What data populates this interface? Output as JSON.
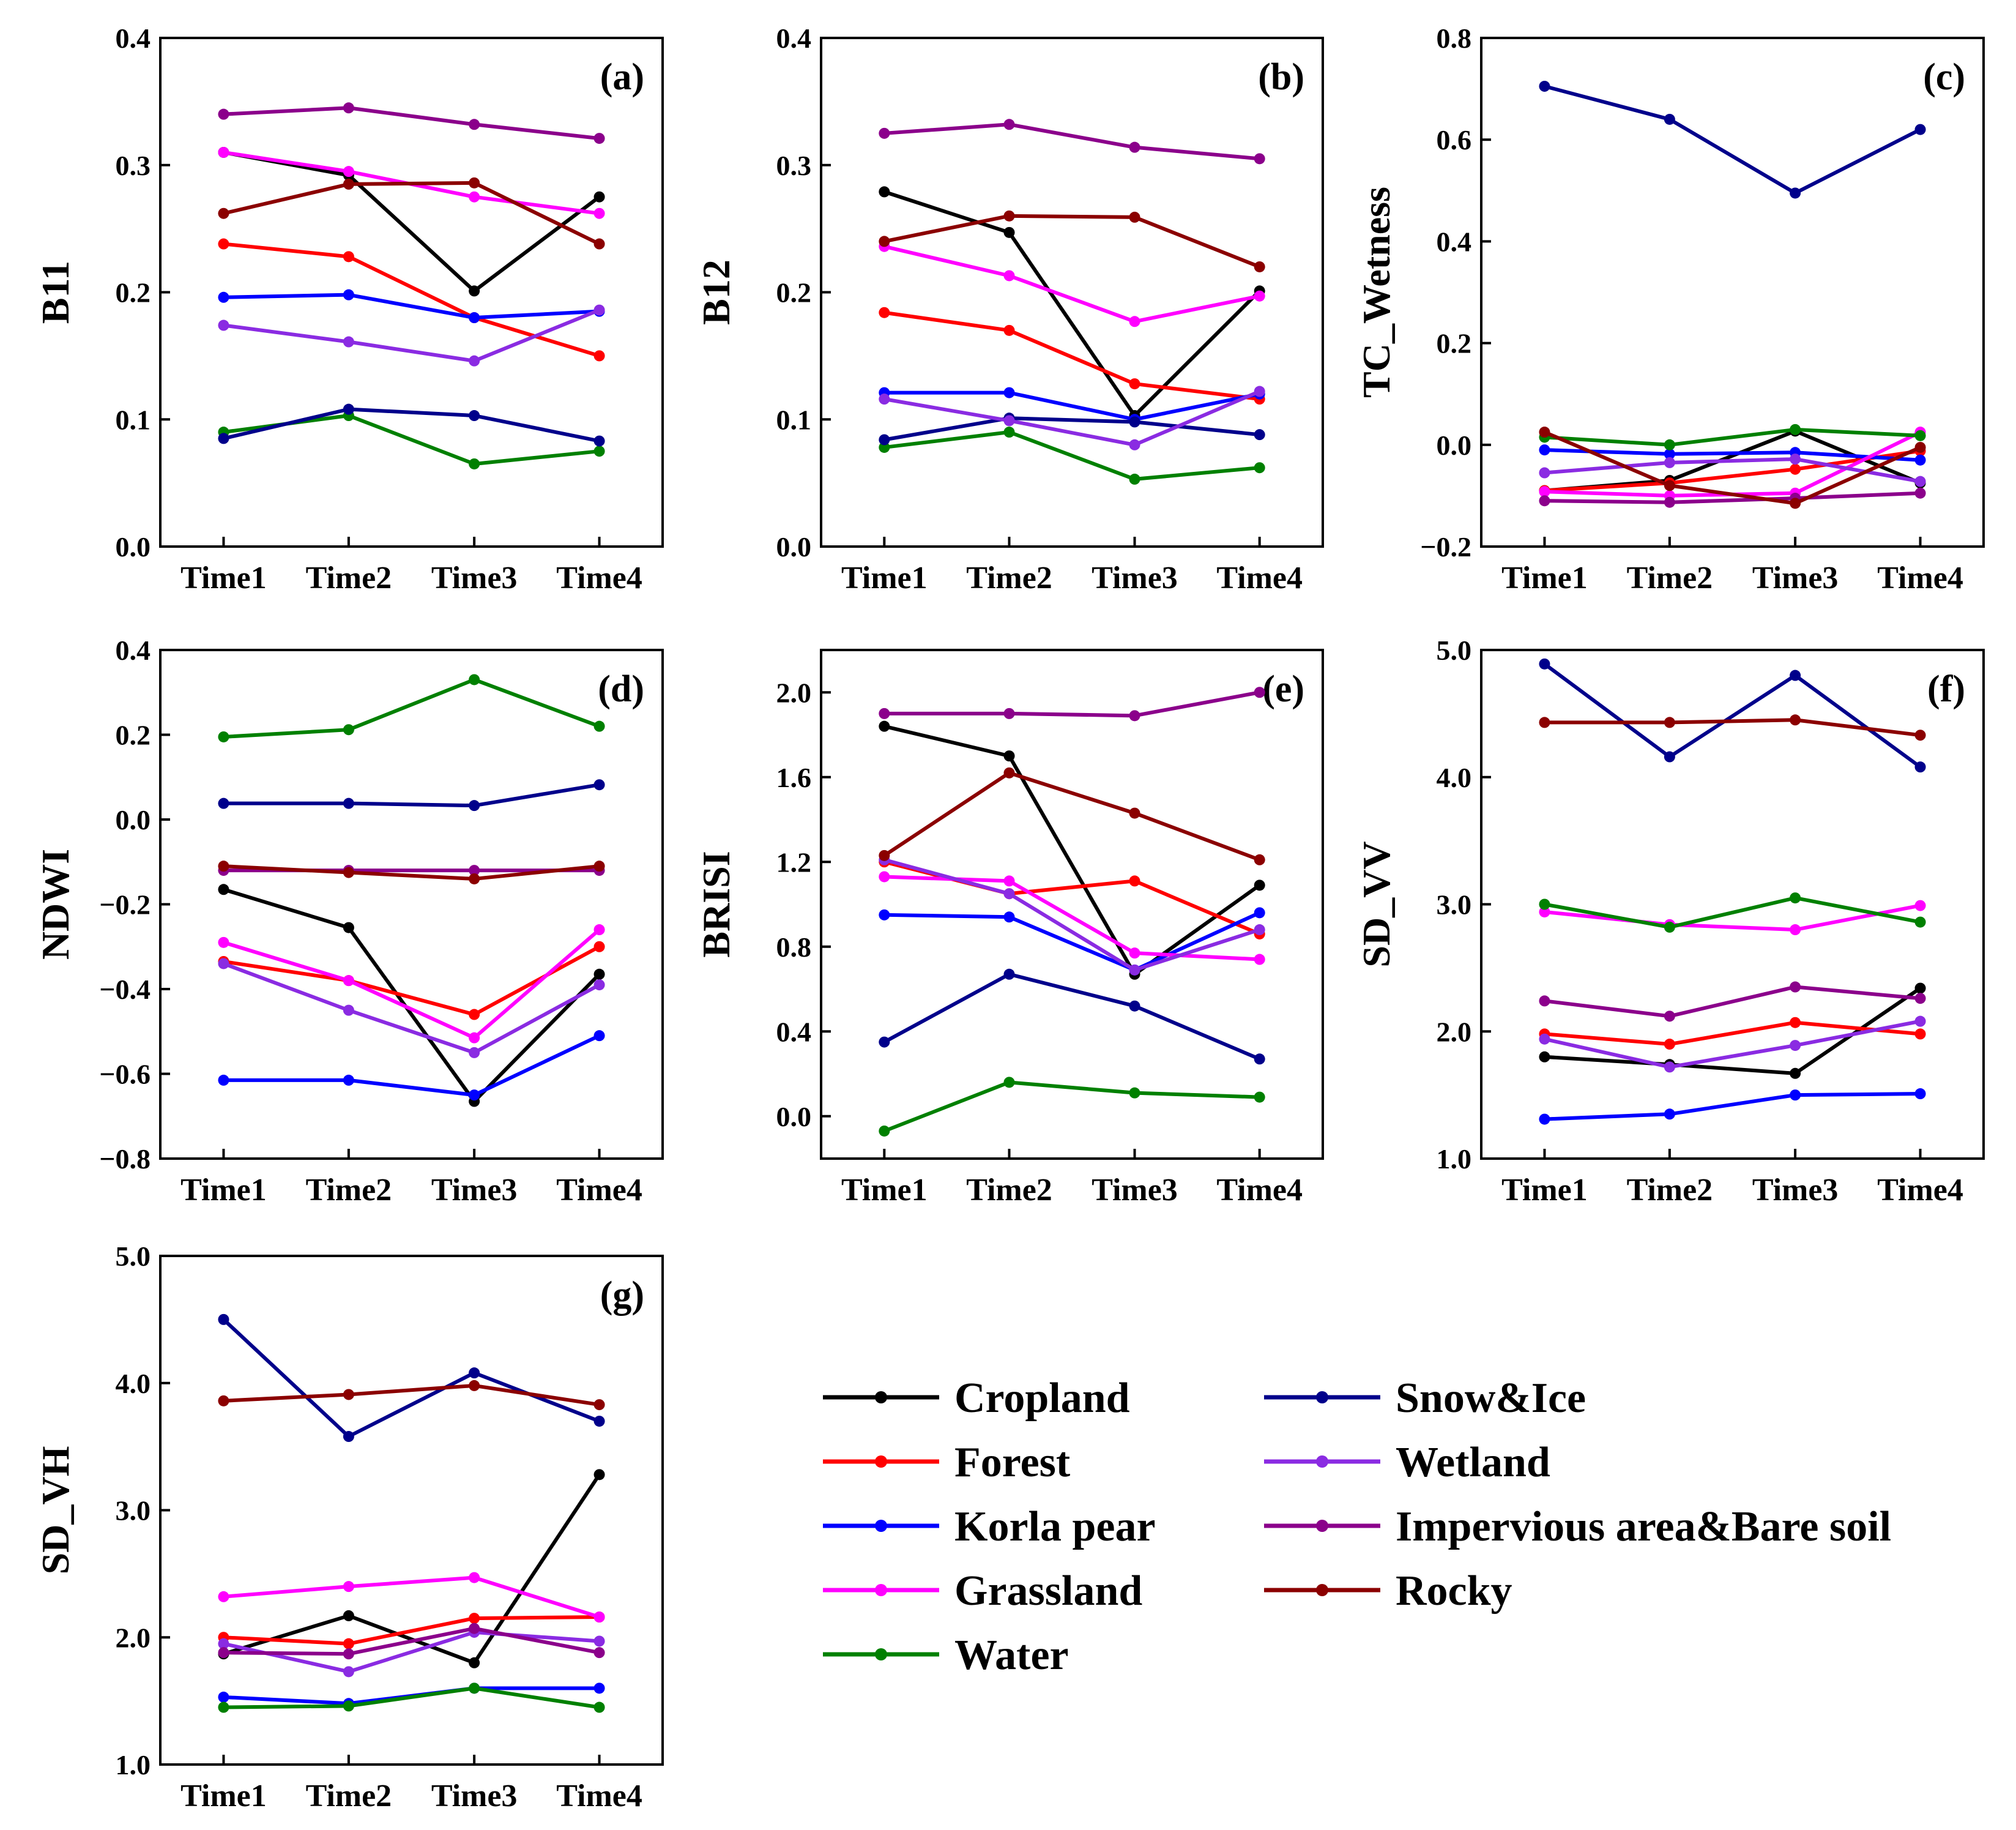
{
  "colors": {
    "Cropland": "#000000",
    "Forest": "#ff0000",
    "Korla pear": "#0000ff",
    "Grassland": "#ff00ff",
    "Water": "#008000",
    "Snow&Ice": "#00008b",
    "Wetland": "#8a2be2",
    "Impervious area&Bare soil": "#8b008b",
    "Rocky": "#8b0000"
  },
  "legend": {
    "entries": [
      "Cropland",
      "Forest",
      "Korla pear",
      "Grassland",
      "Water",
      "Snow&Ice",
      "Wetland",
      "Impervious area&Bare soil",
      "Rocky"
    ]
  },
  "chart_data": [
    {
      "type": "line",
      "label": "(a)",
      "ylabel": "B11",
      "categories": [
        "Time1",
        "Time2",
        "Time3",
        "Time4"
      ],
      "ylim": [
        0.0,
        0.4
      ],
      "yticks": [
        "0.0",
        "0.1",
        "0.2",
        "0.3",
        "0.4"
      ],
      "series": [
        {
          "name": "Cropland",
          "values": [
            0.31,
            0.292,
            0.201,
            0.275
          ]
        },
        {
          "name": "Forest",
          "values": [
            0.238,
            0.228,
            0.18,
            0.15
          ]
        },
        {
          "name": "Korla pear",
          "values": [
            0.196,
            0.198,
            0.18,
            0.185
          ]
        },
        {
          "name": "Grassland",
          "values": [
            0.31,
            0.295,
            0.275,
            0.262
          ]
        },
        {
          "name": "Water",
          "values": [
            0.09,
            0.103,
            0.065,
            0.075
          ]
        },
        {
          "name": "Snow&Ice",
          "values": [
            0.085,
            0.108,
            0.103,
            0.083
          ]
        },
        {
          "name": "Wetland",
          "values": [
            0.174,
            0.161,
            0.146,
            0.186
          ]
        },
        {
          "name": "Impervious area&Bare soil",
          "values": [
            0.34,
            0.345,
            0.332,
            0.321
          ]
        },
        {
          "name": "Rocky",
          "values": [
            0.262,
            0.285,
            0.286,
            0.238
          ]
        }
      ]
    },
    {
      "type": "line",
      "label": "(b)",
      "ylabel": "B12",
      "categories": [
        "Time1",
        "Time2",
        "Time3",
        "Time4"
      ],
      "ylim": [
        0.0,
        0.4
      ],
      "yticks": [
        "0.0",
        "0.1",
        "0.2",
        "0.3",
        "0.4"
      ],
      "series": [
        {
          "name": "Cropland",
          "values": [
            0.279,
            0.247,
            0.103,
            0.201
          ]
        },
        {
          "name": "Forest",
          "values": [
            0.184,
            0.17,
            0.128,
            0.116
          ]
        },
        {
          "name": "Korla pear",
          "values": [
            0.121,
            0.121,
            0.1,
            0.12
          ]
        },
        {
          "name": "Grassland",
          "values": [
            0.236,
            0.213,
            0.177,
            0.197
          ]
        },
        {
          "name": "Water",
          "values": [
            0.078,
            0.09,
            0.053,
            0.062
          ]
        },
        {
          "name": "Snow&Ice",
          "values": [
            0.084,
            0.101,
            0.098,
            0.088
          ]
        },
        {
          "name": "Wetland",
          "values": [
            0.116,
            0.099,
            0.08,
            0.122
          ]
        },
        {
          "name": "Impervious area&Bare soil",
          "values": [
            0.325,
            0.332,
            0.314,
            0.305
          ]
        },
        {
          "name": "Rocky",
          "values": [
            0.24,
            0.26,
            0.259,
            0.22
          ]
        }
      ]
    },
    {
      "type": "line",
      "label": "(c)",
      "ylabel": "TC_Wetness",
      "categories": [
        "Time1",
        "Time2",
        "Time3",
        "Time4"
      ],
      "ylim": [
        -0.2,
        0.8
      ],
      "yticks": [
        "−0.2",
        "0.0",
        "0.2",
        "0.4",
        "0.6",
        "0.8"
      ],
      "series": [
        {
          "name": "Cropland",
          "values": [
            -0.09,
            -0.07,
            0.027,
            -0.075
          ]
        },
        {
          "name": "Forest",
          "values": [
            -0.09,
            -0.075,
            -0.048,
            -0.012
          ]
        },
        {
          "name": "Korla pear",
          "values": [
            -0.01,
            -0.018,
            -0.015,
            -0.03
          ]
        },
        {
          "name": "Grassland",
          "values": [
            -0.092,
            -0.1,
            -0.095,
            0.025
          ]
        },
        {
          "name": "Water",
          "values": [
            0.015,
            0.0,
            0.03,
            0.018
          ]
        },
        {
          "name": "Snow&Ice",
          "values": [
            0.705,
            0.64,
            0.495,
            0.62
          ]
        },
        {
          "name": "Wetland",
          "values": [
            -0.055,
            -0.035,
            -0.028,
            -0.072
          ]
        },
        {
          "name": "Impervious area&Bare soil",
          "values": [
            -0.11,
            -0.113,
            -0.105,
            -0.095
          ]
        },
        {
          "name": "Rocky",
          "values": [
            0.025,
            -0.08,
            -0.115,
            -0.005
          ]
        }
      ]
    },
    {
      "type": "line",
      "label": "(d)",
      "ylabel": "NDWI",
      "categories": [
        "Time1",
        "Time2",
        "Time3",
        "Time4"
      ],
      "ylim": [
        -0.8,
        0.4
      ],
      "yticks": [
        "−0.8",
        "−0.6",
        "−0.4",
        "−0.2",
        "0.0",
        "0.2",
        "0.4"
      ],
      "series": [
        {
          "name": "Cropland",
          "values": [
            -0.165,
            -0.255,
            -0.665,
            -0.365
          ]
        },
        {
          "name": "Forest",
          "values": [
            -0.335,
            -0.38,
            -0.46,
            -0.3
          ]
        },
        {
          "name": "Korla pear",
          "values": [
            -0.615,
            -0.615,
            -0.65,
            -0.51
          ]
        },
        {
          "name": "Grassland",
          "values": [
            -0.29,
            -0.38,
            -0.515,
            -0.26
          ]
        },
        {
          "name": "Water",
          "values": [
            0.195,
            0.212,
            0.33,
            0.22
          ]
        },
        {
          "name": "Snow&Ice",
          "values": [
            0.038,
            0.038,
            0.033,
            0.082
          ]
        },
        {
          "name": "Wetland",
          "values": [
            -0.34,
            -0.45,
            -0.55,
            -0.39
          ]
        },
        {
          "name": "Impervious area&Bare soil",
          "values": [
            -0.12,
            -0.12,
            -0.12,
            -0.12
          ]
        },
        {
          "name": "Rocky",
          "values": [
            -0.11,
            -0.125,
            -0.14,
            -0.11
          ]
        }
      ]
    },
    {
      "type": "line",
      "label": "(e)",
      "ylabel": "BRISI",
      "categories": [
        "Time1",
        "Time2",
        "Time3",
        "Time4"
      ],
      "ylim": [
        -0.2,
        2.2
      ],
      "yticks": [
        "0.0",
        "0.4",
        "0.8",
        "1.2",
        "1.6",
        "2.0"
      ],
      "series": [
        {
          "name": "Cropland",
          "values": [
            1.84,
            1.7,
            0.67,
            1.09
          ]
        },
        {
          "name": "Forest",
          "values": [
            1.2,
            1.05,
            1.11,
            0.86
          ]
        },
        {
          "name": "Korla pear",
          "values": [
            0.95,
            0.94,
            0.69,
            0.96
          ]
        },
        {
          "name": "Grassland",
          "values": [
            1.13,
            1.11,
            0.77,
            0.74
          ]
        },
        {
          "name": "Water",
          "values": [
            -0.07,
            0.16,
            0.11,
            0.09
          ]
        },
        {
          "name": "Snow&Ice",
          "values": [
            0.35,
            0.67,
            0.52,
            0.27
          ]
        },
        {
          "name": "Wetland",
          "values": [
            1.21,
            1.05,
            0.69,
            0.88
          ]
        },
        {
          "name": "Impervious area&Bare soil",
          "values": [
            1.9,
            1.9,
            1.89,
            2.0
          ]
        },
        {
          "name": "Rocky",
          "values": [
            1.23,
            1.62,
            1.43,
            1.21
          ]
        }
      ]
    },
    {
      "type": "line",
      "label": "(f)",
      "ylabel": "SD_VV",
      "categories": [
        "Time1",
        "Time2",
        "Time3",
        "Time4"
      ],
      "ylim": [
        1.0,
        5.0
      ],
      "yticks": [
        "1.0",
        "2.0",
        "3.0",
        "4.0",
        "5.0"
      ],
      "series": [
        {
          "name": "Cropland",
          "values": [
            1.8,
            1.74,
            1.67,
            2.34
          ]
        },
        {
          "name": "Forest",
          "values": [
            1.98,
            1.9,
            2.07,
            1.98
          ]
        },
        {
          "name": "Korla pear",
          "values": [
            1.31,
            1.35,
            1.5,
            1.51
          ]
        },
        {
          "name": "Grassland",
          "values": [
            2.94,
            2.84,
            2.8,
            2.99
          ]
        },
        {
          "name": "Water",
          "values": [
            3.0,
            2.82,
            3.05,
            2.86
          ]
        },
        {
          "name": "Snow&Ice",
          "values": [
            4.89,
            4.16,
            4.8,
            4.08
          ]
        },
        {
          "name": "Wetland",
          "values": [
            1.94,
            1.72,
            1.89,
            2.08
          ]
        },
        {
          "name": "Impervious area&Bare soil",
          "values": [
            2.24,
            2.12,
            2.35,
            2.26
          ]
        },
        {
          "name": "Rocky",
          "values": [
            4.43,
            4.43,
            4.45,
            4.33
          ]
        }
      ]
    },
    {
      "type": "line",
      "label": "(g)",
      "ylabel": "SD_VH",
      "categories": [
        "Time1",
        "Time2",
        "Time3",
        "Time4"
      ],
      "ylim": [
        1.0,
        5.0
      ],
      "yticks": [
        "1.0",
        "2.0",
        "3.0",
        "4.0",
        "5.0"
      ],
      "series": [
        {
          "name": "Cropland",
          "values": [
            1.87,
            2.17,
            1.8,
            3.28
          ]
        },
        {
          "name": "Forest",
          "values": [
            2.0,
            1.95,
            2.15,
            2.16
          ]
        },
        {
          "name": "Korla pear",
          "values": [
            1.53,
            1.48,
            1.6,
            1.6
          ]
        },
        {
          "name": "Grassland",
          "values": [
            2.32,
            2.4,
            2.47,
            2.16
          ]
        },
        {
          "name": "Water",
          "values": [
            1.45,
            1.46,
            1.6,
            1.45
          ]
        },
        {
          "name": "Snow&Ice",
          "values": [
            4.5,
            3.58,
            4.08,
            3.7
          ]
        },
        {
          "name": "Wetland",
          "values": [
            1.95,
            1.73,
            2.04,
            1.97
          ]
        },
        {
          "name": "Impervious area&Bare soil",
          "values": [
            1.88,
            1.87,
            2.07,
            1.88
          ]
        },
        {
          "name": "Rocky",
          "values": [
            3.86,
            3.91,
            3.98,
            3.83
          ]
        }
      ]
    }
  ]
}
